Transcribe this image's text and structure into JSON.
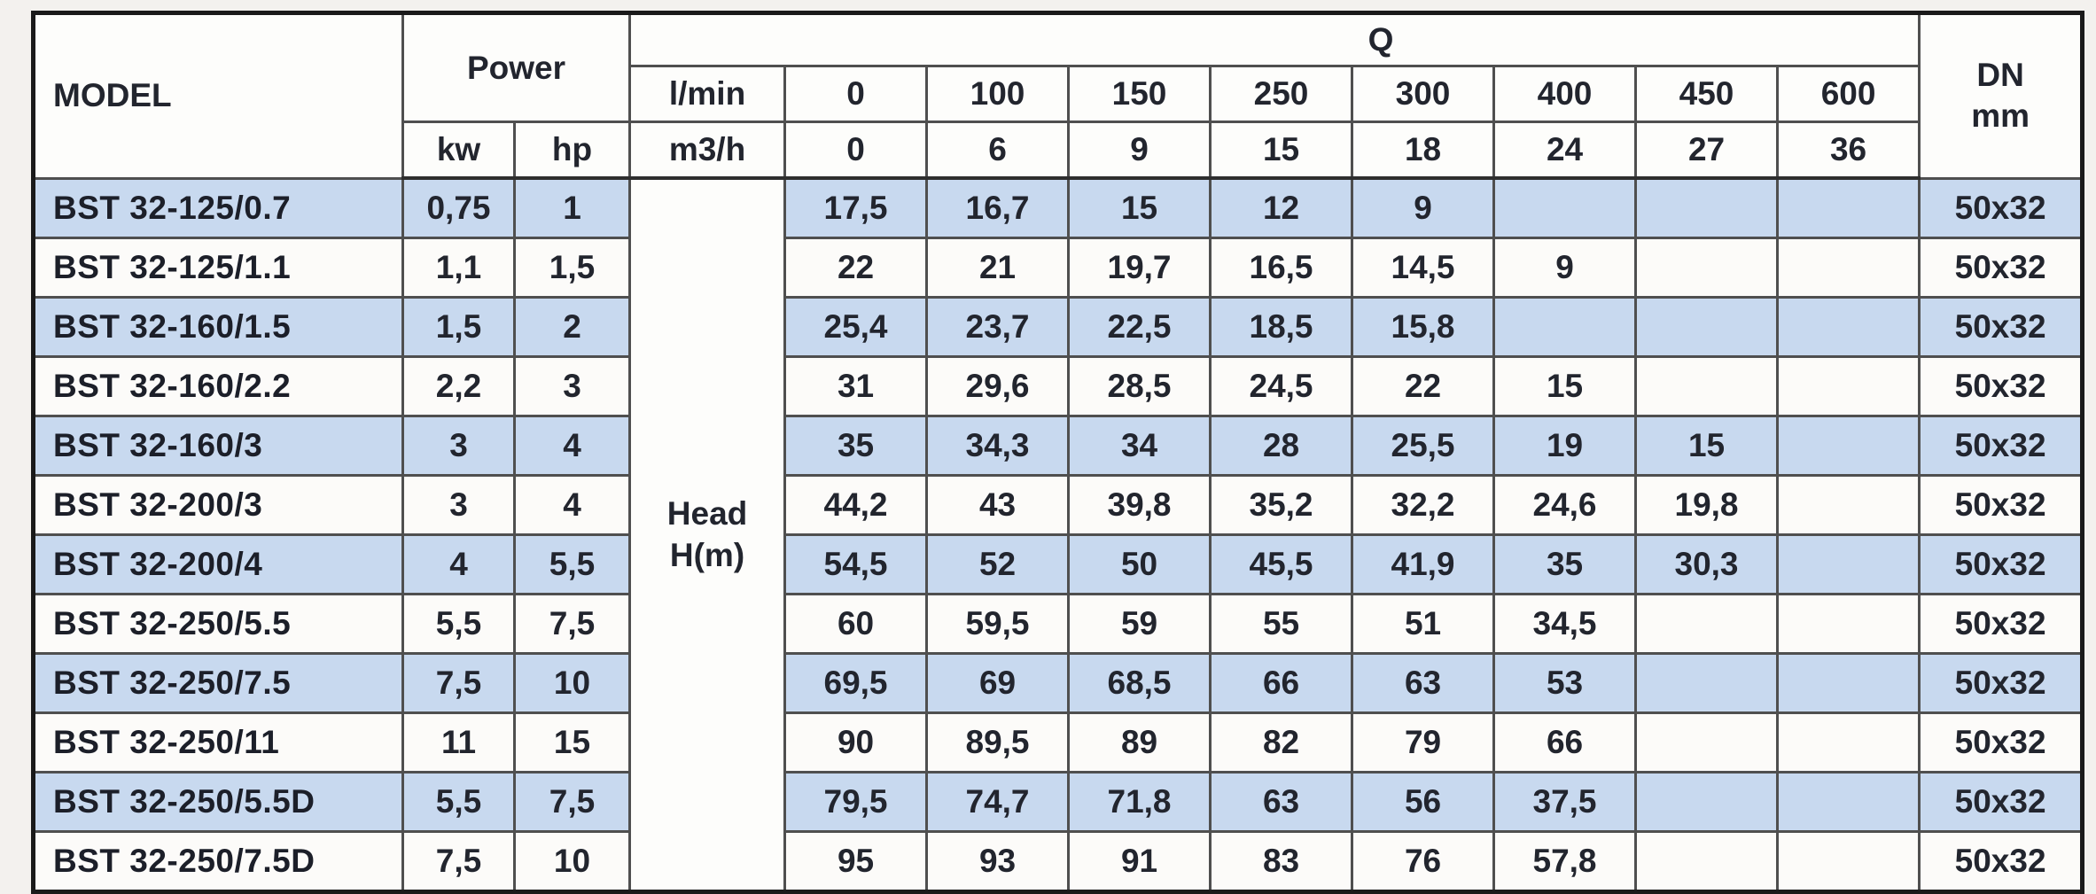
{
  "page": {
    "background": "#f3f1ee"
  },
  "table": {
    "header": {
      "model_label": "MODEL",
      "power_label": "Power",
      "kw_label": "kw",
      "hp_label": "hp",
      "q_label": "Q",
      "lmin_label": "l/min",
      "m3h_label": "m3/h",
      "q_lmin_values": [
        "0",
        "100",
        "150",
        "250",
        "300",
        "400",
        "450",
        "600"
      ],
      "q_m3h_values": [
        "0",
        "6",
        "9",
        "15",
        "18",
        "24",
        "27",
        "36"
      ],
      "dn_line1": "DN",
      "dn_line2": "mm"
    },
    "head_column": {
      "line1": "Head",
      "line2": "H(m)"
    },
    "colors": {
      "highlight_row": "#c8d9ef",
      "plain_row": "#fcfbf9",
      "text": "#22252e"
    },
    "rows": [
      {
        "model": "BST 32-125/0.7",
        "kw": "0,75",
        "hp": "1",
        "head": [
          "17,5",
          "16,7",
          "15",
          "12",
          "9",
          "",
          "",
          ""
        ],
        "dn": "50x32",
        "highlight": true
      },
      {
        "model": "BST 32-125/1.1",
        "kw": "1,1",
        "hp": "1,5",
        "head": [
          "22",
          "21",
          "19,7",
          "16,5",
          "14,5",
          "9",
          "",
          ""
        ],
        "dn": "50x32",
        "highlight": false
      },
      {
        "model": "BST 32-160/1.5",
        "kw": "1,5",
        "hp": "2",
        "head": [
          "25,4",
          "23,7",
          "22,5",
          "18,5",
          "15,8",
          "",
          "",
          ""
        ],
        "dn": "50x32",
        "highlight": true
      },
      {
        "model": "BST 32-160/2.2",
        "kw": "2,2",
        "hp": "3",
        "head": [
          "31",
          "29,6",
          "28,5",
          "24,5",
          "22",
          "15",
          "",
          ""
        ],
        "dn": "50x32",
        "highlight": false
      },
      {
        "model": "BST 32-160/3",
        "kw": "3",
        "hp": "4",
        "head": [
          "35",
          "34,3",
          "34",
          "28",
          "25,5",
          "19",
          "15",
          ""
        ],
        "dn": "50x32",
        "highlight": true
      },
      {
        "model": "BST 32-200/3",
        "kw": "3",
        "hp": "4",
        "head": [
          "44,2",
          "43",
          "39,8",
          "35,2",
          "32,2",
          "24,6",
          "19,8",
          ""
        ],
        "dn": "50x32",
        "highlight": false
      },
      {
        "model": "BST 32-200/4",
        "kw": "4",
        "hp": "5,5",
        "head": [
          "54,5",
          "52",
          "50",
          "45,5",
          "41,9",
          "35",
          "30,3",
          ""
        ],
        "dn": "50x32",
        "highlight": true
      },
      {
        "model": "BST 32-250/5.5",
        "kw": "5,5",
        "hp": "7,5",
        "head": [
          "60",
          "59,5",
          "59",
          "55",
          "51",
          "34,5",
          "",
          ""
        ],
        "dn": "50x32",
        "highlight": false
      },
      {
        "model": "BST 32-250/7.5",
        "kw": "7,5",
        "hp": "10",
        "head": [
          "69,5",
          "69",
          "68,5",
          "66",
          "63",
          "53",
          "",
          ""
        ],
        "dn": "50x32",
        "highlight": true
      },
      {
        "model": "BST 32-250/11",
        "kw": "11",
        "hp": "15",
        "head": [
          "90",
          "89,5",
          "89",
          "82",
          "79",
          "66",
          "",
          ""
        ],
        "dn": "50x32",
        "highlight": false
      },
      {
        "model": "BST 32-250/5.5D",
        "kw": "5,5",
        "hp": "7,5",
        "head": [
          "79,5",
          "74,7",
          "71,8",
          "63",
          "56",
          "37,5",
          "",
          ""
        ],
        "dn": "50x32",
        "highlight": true
      },
      {
        "model": "BST 32-250/7.5D",
        "kw": "7,5",
        "hp": "10",
        "head": [
          "95",
          "93",
          "91",
          "83",
          "76",
          "57,8",
          "",
          ""
        ],
        "dn": "50x32",
        "highlight": false
      }
    ]
  }
}
